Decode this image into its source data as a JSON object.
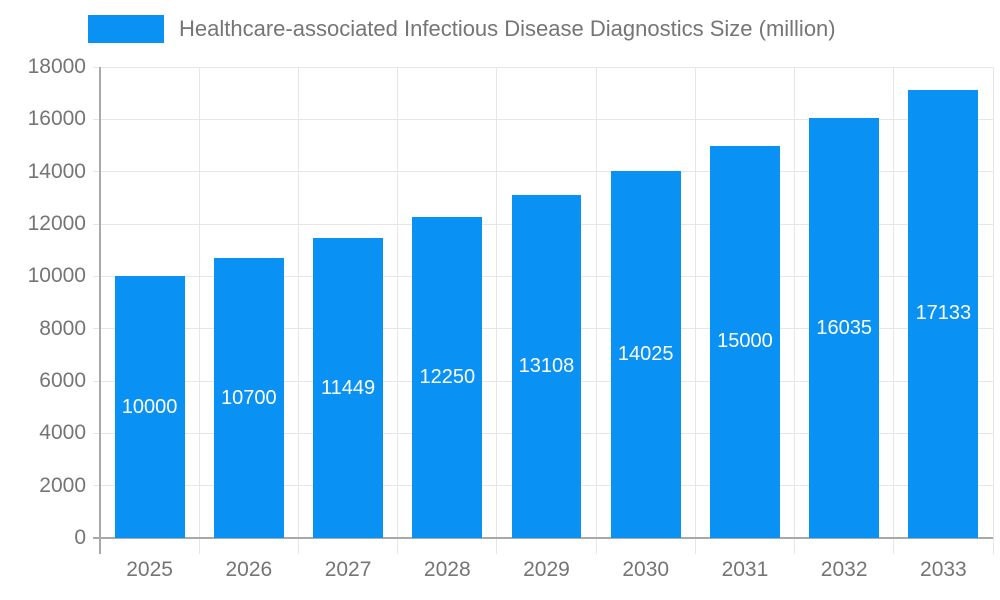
{
  "chart_data": {
    "type": "bar",
    "title": "",
    "legend": {
      "position": "top-left",
      "label": "Healthcare-associated Infectious Disease Diagnostics Size (million)"
    },
    "categories": [
      "2025",
      "2026",
      "2027",
      "2028",
      "2029",
      "2030",
      "2031",
      "2032",
      "2033"
    ],
    "values": [
      10000,
      10700,
      11449,
      12250,
      13108,
      14025,
      15000,
      16035,
      17133
    ],
    "xlabel": "",
    "ylabel": "",
    "ylim": [
      0,
      18000
    ],
    "ytick_step": 2000,
    "grid": true,
    "bar_label_position": "inside-center",
    "colors": {
      "bar": "#0991f4",
      "bar_label": "#ffffff",
      "axis_text": "#757575",
      "legend_text": "#757575",
      "grid_line": "#e6e6e6",
      "axis_line": "#a9a9a9",
      "background": "#ffffff"
    }
  }
}
